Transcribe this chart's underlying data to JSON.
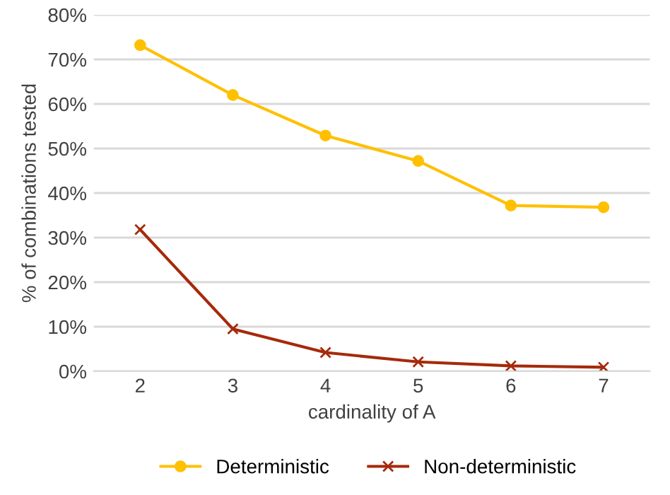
{
  "chart_data": {
    "type": "line",
    "xlabel": "cardinality of A",
    "ylabel": "% of combinations tested",
    "categories": [
      "2",
      "3",
      "4",
      "5",
      "6",
      "7"
    ],
    "series": [
      {
        "name": "Deterministic",
        "color": "#ffc000",
        "marker": "circle",
        "values": [
          73.2,
          62,
          52.9,
          47.2,
          37.2,
          36.8
        ]
      },
      {
        "name": "Non-deterministic",
        "color": "#a52a0a",
        "marker": "cross",
        "values": [
          31.8,
          9.5,
          4.2,
          2.1,
          1.2,
          0.9
        ]
      }
    ],
    "ylim": [
      0,
      80
    ],
    "yticks": [
      {
        "value": 0,
        "label": "0%"
      },
      {
        "value": 10,
        "label": "10%"
      },
      {
        "value": 20,
        "label": "20%"
      },
      {
        "value": 30,
        "label": "30%"
      },
      {
        "value": 40,
        "label": "40%"
      },
      {
        "value": 50,
        "label": "50%"
      },
      {
        "value": 60,
        "label": "60%"
      },
      {
        "value": 70,
        "label": "70%"
      },
      {
        "value": 80,
        "label": "80%"
      }
    ],
    "grid": "y",
    "legend": "bottom"
  }
}
